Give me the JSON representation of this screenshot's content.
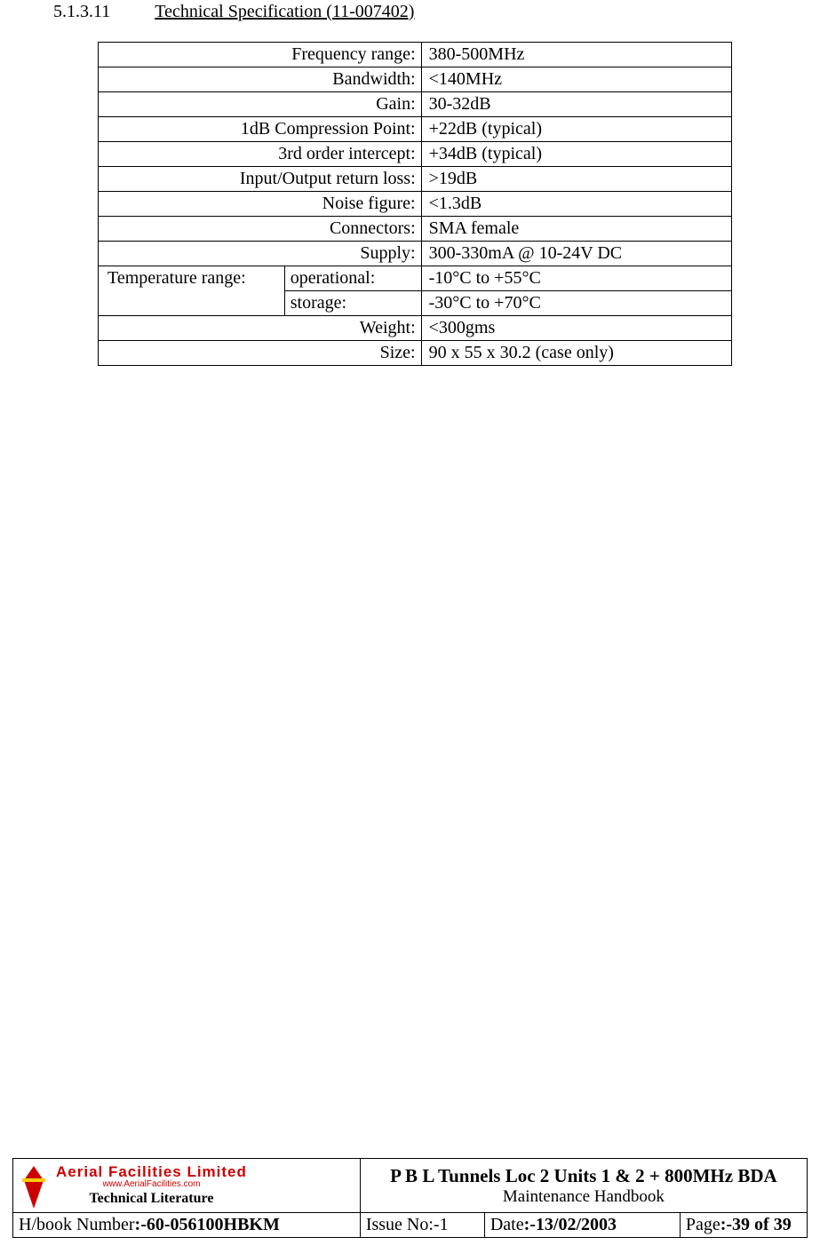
{
  "heading": {
    "number": "5.1.3.11",
    "title": "Technical Specification (11-007402)"
  },
  "spec": {
    "rows": [
      {
        "label": "Frequency range:",
        "value": "380-500MHz"
      },
      {
        "label": "Bandwidth:",
        "value": "<140MHz"
      },
      {
        "label": "Gain:",
        "value": "30-32dB"
      },
      {
        "label": "1dB Compression Point:",
        "value": "+22dB (typical)"
      },
      {
        "label": "3rd order intercept:",
        "value": "+34dB (typical)"
      },
      {
        "label": "Input/Output return loss:",
        "value": ">19dB"
      },
      {
        "label": "Noise figure:",
        "value": "<1.3dB"
      },
      {
        "label": "Connectors:",
        "value": "SMA female"
      },
      {
        "label": "Supply:",
        "value": "300-330mA @ 10-24V DC"
      }
    ],
    "temp": {
      "label": "Temperature range:",
      "operational_label": "operational:",
      "operational_value": "-10°C to +55°C",
      "storage_label": "storage:",
      "storage_value": "-30°C to +70°C"
    },
    "tail": [
      {
        "label": "Weight:",
        "value": "<300gms"
      },
      {
        "label": "Size:",
        "value": "90 x 55 x 30.2 (case only)"
      }
    ]
  },
  "footer": {
    "logo": {
      "line1": "Aerial  Facilities  Limited",
      "line2": "www.AerialFacilities.com",
      "line3": "Technical Literature",
      "icon_color": "#cc0000",
      "icon_accent": "#ffcc00"
    },
    "title_main": "P B L Tunnels Loc 2 Units 1 & 2 + 800MHz BDA",
    "title_sub": "Maintenance Handbook",
    "hbook_label": "H/book Number",
    "hbook_value": ":-60-056100HBKM",
    "issue_label": "Issue No:-",
    "issue_value": "1",
    "date_label": "Date",
    "date_value": ":-13/02/2003",
    "page_label": "Page",
    "page_value": ":-39 of 39"
  }
}
